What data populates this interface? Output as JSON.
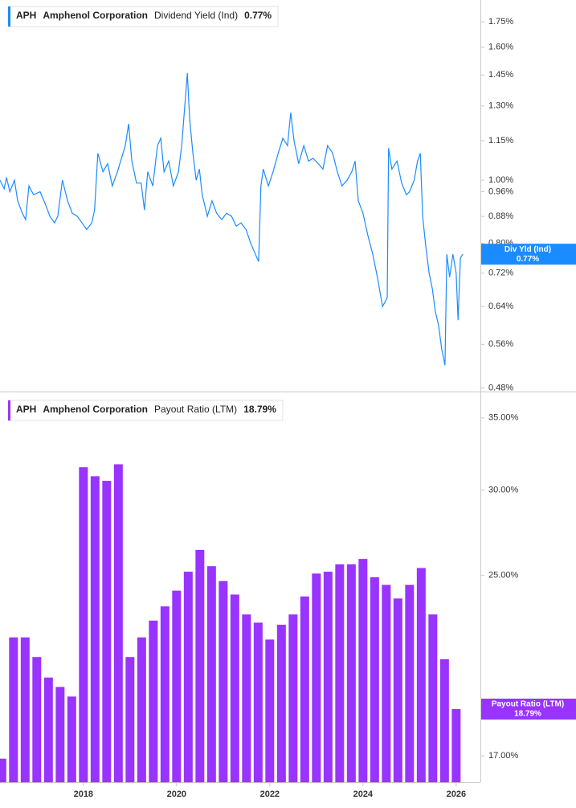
{
  "chart_data": [
    {
      "type": "line",
      "ticker": "APH",
      "company": "Amphenol Corporation",
      "value_label": "0.77%",
      "log_scale": true,
      "x": [
        2016.21,
        2016.3,
        2016.35,
        2016.42,
        2016.52,
        2016.59,
        2016.69,
        2016.76,
        2016.83,
        2016.93,
        2017.07,
        2017.18,
        2017.28,
        2017.38,
        2017.45,
        2017.55,
        2017.66,
        2017.76,
        2017.87,
        2017.97,
        2018.07,
        2018.18,
        2018.24,
        2018.31,
        2018.42,
        2018.52,
        2018.62,
        2018.73,
        2018.8,
        2018.9,
        2018.97,
        2019.04,
        2019.14,
        2019.24,
        2019.31,
        2019.38,
        2019.49,
        2019.59,
        2019.66,
        2019.73,
        2019.83,
        2019.93,
        2020.04,
        2020.11,
        2020.23,
        2020.28,
        2020.35,
        2020.42,
        2020.49,
        2020.55,
        2020.66,
        2020.76,
        2020.86,
        2020.97,
        2021.07,
        2021.18,
        2021.28,
        2021.38,
        2021.49,
        2021.59,
        2021.69,
        2021.76,
        2021.81,
        2021.86,
        2021.97,
        2022.07,
        2022.18,
        2022.28,
        2022.38,
        2022.45,
        2022.52,
        2022.62,
        2022.73,
        2022.83,
        2022.93,
        2023.04,
        2023.14,
        2023.24,
        2023.35,
        2023.45,
        2023.55,
        2023.66,
        2023.76,
        2023.83,
        2023.9,
        2024.0,
        2024.11,
        2024.21,
        2024.31,
        2024.42,
        2024.52,
        2024.55,
        2024.62,
        2024.73,
        2024.83,
        2024.93,
        2025.0,
        2025.1,
        2025.17,
        2025.23,
        2025.28,
        2025.35,
        2025.42,
        2025.49,
        2025.55,
        2025.62,
        2025.69,
        2025.76,
        2025.8,
        2025.86,
        2025.93,
        2026.0,
        2026.04,
        2026.09,
        2026.14
      ],
      "series": [
        {
          "name": "Dividend Yield (Ind)",
          "badge_name": "Div Yld (Ind)",
          "color": "#1a8cff",
          "values": [
            1.0,
            0.97,
            1.01,
            0.96,
            1.0,
            0.93,
            0.89,
            0.87,
            0.98,
            0.95,
            0.96,
            0.92,
            0.88,
            0.86,
            0.88,
            1.0,
            0.93,
            0.89,
            0.88,
            0.86,
            0.84,
            0.86,
            0.9,
            1.1,
            1.03,
            1.06,
            0.98,
            1.03,
            1.07,
            1.13,
            1.22,
            1.07,
            0.99,
            0.99,
            0.9,
            1.03,
            0.98,
            1.13,
            1.16,
            1.03,
            1.07,
            0.98,
            1.03,
            1.13,
            1.46,
            1.24,
            1.1,
            1.0,
            1.04,
            0.95,
            0.88,
            0.93,
            0.89,
            0.87,
            0.89,
            0.88,
            0.85,
            0.86,
            0.84,
            0.8,
            0.77,
            0.75,
            0.98,
            1.04,
            0.98,
            1.03,
            1.1,
            1.16,
            1.13,
            1.27,
            1.15,
            1.06,
            1.13,
            1.07,
            1.08,
            1.06,
            1.04,
            1.13,
            1.1,
            1.03,
            0.98,
            1.0,
            1.03,
            1.07,
            0.93,
            0.89,
            0.82,
            0.77,
            0.71,
            0.64,
            0.66,
            1.12,
            1.04,
            1.07,
            0.99,
            0.95,
            0.96,
            1.0,
            1.07,
            1.1,
            0.88,
            0.79,
            0.72,
            0.68,
            0.63,
            0.6,
            0.55,
            0.52,
            0.77,
            0.71,
            0.77,
            0.72,
            0.61,
            0.76,
            0.77
          ]
        }
      ],
      "xlim": [
        2016.21,
        2026.52
      ],
      "ylim": [
        0.474,
        1.89
      ],
      "yticks": [
        {
          "value": 1.75,
          "label": "1.75%"
        },
        {
          "value": 1.6,
          "label": "1.60%"
        },
        {
          "value": 1.45,
          "label": "1.45%"
        },
        {
          "value": 1.3,
          "label": "1.30%"
        },
        {
          "value": 1.15,
          "label": "1.15%"
        },
        {
          "value": 1.0,
          "label": "1.00%"
        },
        {
          "value": 0.96,
          "label": "0.96%"
        },
        {
          "value": 0.88,
          "label": "0.88%"
        },
        {
          "value": 0.8,
          "label": "0.80%"
        },
        {
          "value": 0.72,
          "label": "0.72%"
        },
        {
          "value": 0.64,
          "label": "0.64%"
        },
        {
          "value": 0.56,
          "label": "0.56%"
        },
        {
          "value": 0.48,
          "label": "0.48%"
        }
      ]
    },
    {
      "type": "bar",
      "ticker": "APH",
      "company": "Amphenol Corporation",
      "value_label": "18.79%",
      "log_scale": true,
      "x": [
        2016.25,
        2016.5,
        2016.75,
        2017,
        2017.25,
        2017.5,
        2017.75,
        2018,
        2018.25,
        2018.5,
        2018.75,
        2019,
        2019.25,
        2019.5,
        2019.75,
        2020,
        2020.25,
        2020.5,
        2020.75,
        2021,
        2021.25,
        2021.5,
        2021.75,
        2022,
        2022.25,
        2022.5,
        2022.75,
        2023,
        2023.25,
        2023.5,
        2023.75,
        2024,
        2024.25,
        2024.5,
        2024.75,
        2025,
        2025.25,
        2025.5,
        2025.75,
        2026
      ],
      "series": [
        {
          "name": "Payout Ratio (LTM)",
          "badge_name": "Payout Ratio (LTM)",
          "color": "#9933ff",
          "values": [
            16.9,
            21.9,
            21.9,
            21.0,
            20.1,
            19.7,
            19.3,
            31.5,
            30.9,
            30.6,
            31.7,
            21.0,
            21.9,
            22.7,
            23.4,
            24.2,
            25.2,
            26.4,
            25.5,
            24.7,
            24.0,
            23.0,
            22.6,
            21.8,
            22.5,
            23.0,
            23.9,
            25.1,
            25.2,
            25.6,
            25.6,
            25.9,
            24.9,
            24.5,
            23.8,
            24.5,
            25.4,
            23.0,
            20.9,
            18.79
          ]
        }
      ],
      "xlim": [
        2016.21,
        2026.52
      ],
      "ylim": [
        16.07,
        36.84
      ],
      "yticks": [
        {
          "value": 35,
          "label": "35.00%"
        },
        {
          "value": 30,
          "label": "30.00%"
        },
        {
          "value": 25,
          "label": "25.00%"
        },
        {
          "value": 17,
          "label": "17.00%"
        }
      ],
      "xticks": [
        2018,
        2020,
        2022,
        2024,
        2026
      ]
    }
  ]
}
